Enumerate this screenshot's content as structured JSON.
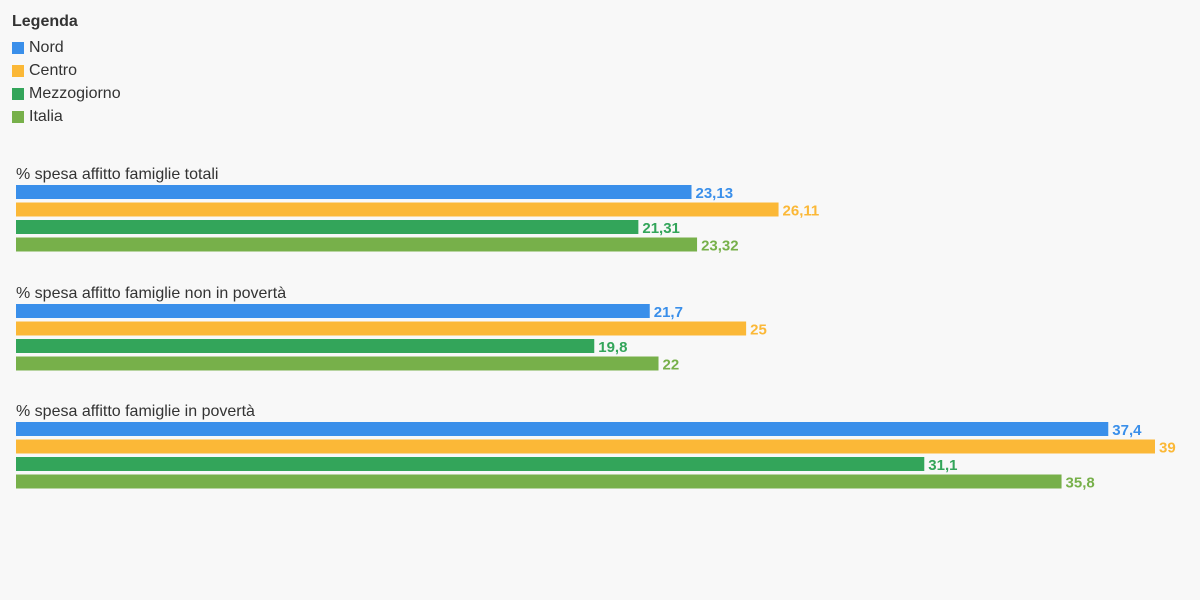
{
  "legend": {
    "title": "Legenda"
  },
  "chart_data": {
    "type": "bar",
    "orientation": "horizontal",
    "series": [
      {
        "name": "Nord",
        "color": "#3a8fea",
        "values": [
          23.13,
          21.7,
          37.4
        ],
        "labels": [
          "23,13",
          "21,7",
          "37,4"
        ]
      },
      {
        "name": "Centro",
        "color": "#fbb837",
        "values": [
          26.11,
          25,
          39
        ],
        "labels": [
          "26,11",
          "25",
          "39"
        ]
      },
      {
        "name": "Mezzogiorno",
        "color": "#33a55a",
        "values": [
          21.31,
          19.8,
          31.1
        ],
        "labels": [
          "21,31",
          "19,8",
          "31,1"
        ]
      },
      {
        "name": "Italia",
        "color": "#77b04a",
        "values": [
          23.32,
          22,
          35.8
        ],
        "labels": [
          "23,32",
          "22",
          "35,8"
        ]
      }
    ],
    "categories": [
      "% spesa affitto famiglie totali",
      "% spesa affitto famiglie non in povertà",
      "% spesa affitto famiglie in povertà"
    ],
    "xlim": [
      0,
      39
    ],
    "grid": false,
    "legend_position": "top-left"
  }
}
